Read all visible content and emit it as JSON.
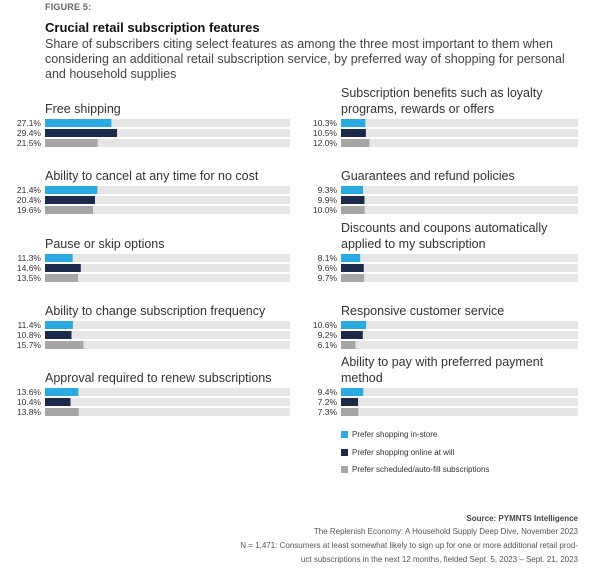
{
  "figure_label": "FIGURE 5:",
  "title": "Crucial retail subscription features",
  "subtitle": "Share of subscribers citing select features as among the three most important to them when considering an additional retail subscription service, by preferred way of shopping for personal and household supplies",
  "colors": {
    "in_store": "#29abe2",
    "online": "#1b2a4a",
    "scheduled": "#a6a6a6",
    "track": "#e6e6e6"
  },
  "chart_data": {
    "type": "bar",
    "orientation": "horizontal",
    "value_unit": "%",
    "xlim": [
      0,
      100
    ],
    "series_names": [
      "Prefer shopping in-store",
      "Prefer shopping online at will",
      "Prefer scheduled/auto-fill subscriptions"
    ],
    "panels": [
      {
        "title": "Free shipping",
        "values": [
          27.1,
          29.4,
          21.5
        ],
        "labels": [
          "27.1%",
          "29.4%",
          "21.5%"
        ]
      },
      {
        "title": "Ability to cancel at any time for no cost",
        "values": [
          21.4,
          20.4,
          19.6
        ],
        "labels": [
          "21.4%",
          "20.4%",
          "19.6%"
        ]
      },
      {
        "title": "Pause or skip options",
        "values": [
          11.3,
          14.6,
          13.5
        ],
        "labels": [
          "11.3%",
          "14.6%",
          "13.5%"
        ]
      },
      {
        "title": "Ability to change subscription frequency",
        "values": [
          11.4,
          10.8,
          15.7
        ],
        "labels": [
          "11.4%",
          "10.8%",
          "15.7%"
        ]
      },
      {
        "title": "Approval required to renew subscriptions",
        "values": [
          13.6,
          10.4,
          13.8
        ],
        "labels": [
          "13.6%",
          "10.4%",
          "13.8%"
        ]
      },
      {
        "title": "Subscription benefits such as loyalty programs, rewards or offers",
        "values": [
          10.3,
          10.5,
          12.0
        ],
        "labels": [
          "10.3%",
          "10.5%",
          "12.0%"
        ]
      },
      {
        "title": "Guarantees and refund policies",
        "values": [
          9.3,
          9.9,
          10.0
        ],
        "labels": [
          "9.3%",
          "9.9%",
          "10.0%"
        ]
      },
      {
        "title": "Discounts and coupons automatically applied to my subscription",
        "values": [
          8.1,
          9.6,
          9.7
        ],
        "labels": [
          "8.1%",
          "9.6%",
          "9.7%"
        ]
      },
      {
        "title": "Responsive customer service",
        "values": [
          10.6,
          9.2,
          6.1
        ],
        "labels": [
          "10.6%",
          "9.2%",
          "6.1%"
        ]
      },
      {
        "title": "Ability to pay with preferred payment method",
        "values": [
          9.4,
          7.2,
          7.3
        ],
        "labels": [
          "9.4%",
          "7.2%",
          "7.3%"
        ]
      }
    ]
  },
  "footer": {
    "source": "Source: PYMNTS Intelligence",
    "line1": "The Replenish Economy: A Household Supply Deep Dive, November 2023",
    "line2": "N = 1,471: Consumers at least somewhat likely to sign up for one or more additional retail prod-",
    "line3": "uct subscriptions in the next 12 months, fielded Sept. 5, 2023 – Sept. 21, 2023"
  }
}
